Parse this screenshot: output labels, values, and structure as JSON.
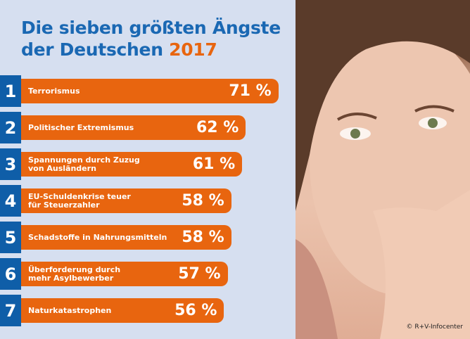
{
  "title": {
    "line1": "Die sieben größten Ängste",
    "line2": "der Deutschen",
    "year": "2017"
  },
  "colors": {
    "title": "#1a68b3",
    "accent": "#e8650f",
    "rank_box": "#0f5ea8",
    "background": "#d6dff0"
  },
  "chart_data": {
    "type": "bar",
    "orientation": "horizontal",
    "title": "Die sieben größten Ängste der Deutschen 2017",
    "categories": [
      "Terrorismus",
      "Politischer Extremismus",
      "Spannungen durch Zuzug von Ausländern",
      "EU-Schuldenkrise teuer für Steuerzahler",
      "Schadstoffe in Nahrungsmitteln",
      "Überforderung durch mehr Asylbewerber",
      "Naturkatastrophen"
    ],
    "values": [
      71,
      62,
      61,
      58,
      58,
      57,
      56
    ],
    "ranks": [
      "1",
      "2",
      "3",
      "4",
      "5",
      "6",
      "7"
    ],
    "value_labels": [
      "71 %",
      "62 %",
      "61 %",
      "58 %",
      "58 %",
      "57 %",
      "56 %"
    ],
    "label_lines": [
      [
        "Terrorismus"
      ],
      [
        "Politischer Extremismus"
      ],
      [
        "Spannungen durch Zuzug",
        "von Ausländern"
      ],
      [
        "EU-Schuldenkrise teuer",
        "für Steuerzahler"
      ],
      [
        "Schadstoffe in Nahrungsmitteln"
      ],
      [
        "Überforderung durch",
        "mehr Asylbewerber"
      ],
      [
        "Naturkatastrophen"
      ]
    ],
    "unit": "%"
  },
  "credit": "© R+V-Infocenter"
}
